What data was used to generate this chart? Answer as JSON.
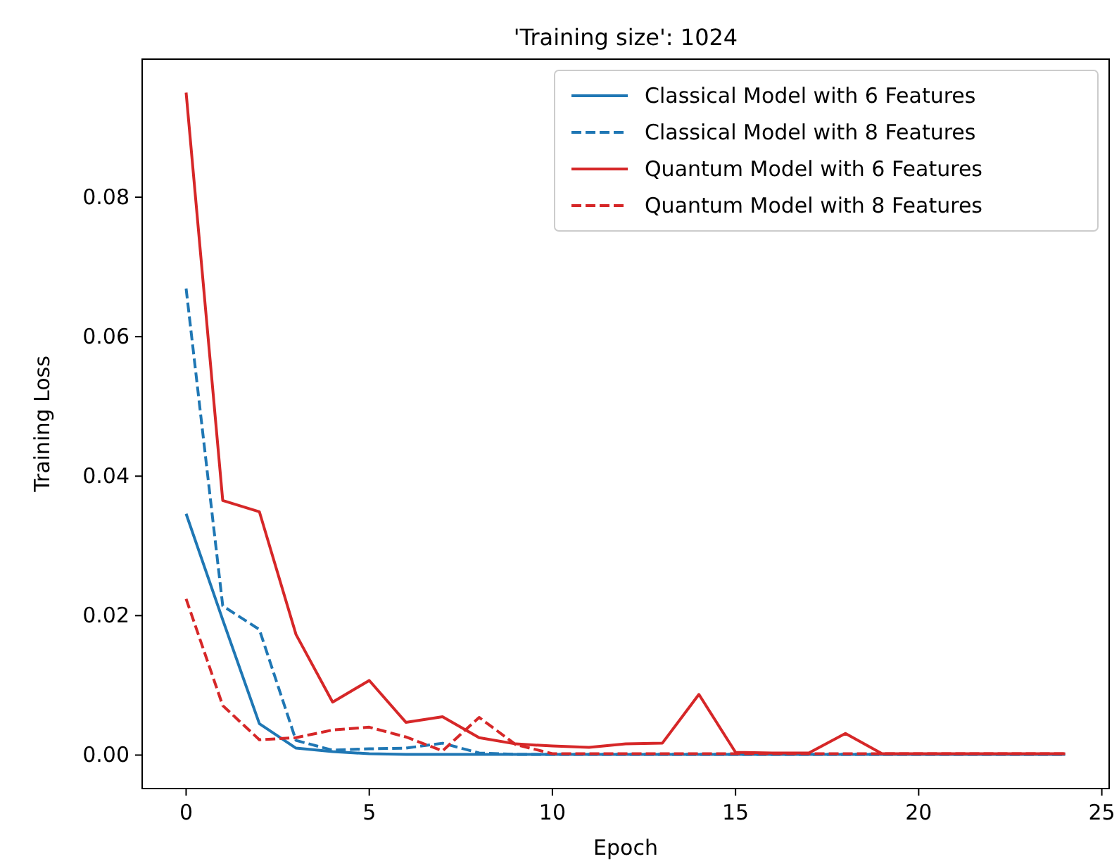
{
  "chart_data": {
    "type": "line",
    "title": "'Training size': 1024",
    "xlabel": "Epoch",
    "ylabel": "Training Loss",
    "x": [
      0,
      1,
      2,
      3,
      4,
      5,
      6,
      7,
      8,
      9,
      10,
      11,
      12,
      13,
      14,
      15,
      16,
      17,
      18,
      19,
      20,
      21,
      22,
      23,
      24
    ],
    "series": [
      {
        "name": "Classical Model with 6 Features",
        "color": "#1f77b4",
        "line_style": "solid",
        "values": [
          0.0346,
          0.0194,
          0.0045,
          0.001,
          0.0005,
          0.0002,
          0.0001,
          0.0001,
          0.0001,
          0.0001,
          0.0001,
          0.0001,
          0.0001,
          0.0001,
          0.0001,
          0.0001,
          0.0001,
          0.0001,
          0.0001,
          0.0001,
          0.0001,
          0.0001,
          0.0001,
          0.0001,
          0.0001
        ]
      },
      {
        "name": "Classical Model with 8 Features",
        "color": "#1f77b4",
        "line_style": "dashed",
        "values": [
          0.0669,
          0.0214,
          0.018,
          0.0021,
          0.0007,
          0.0009,
          0.001,
          0.0017,
          0.0003,
          0.0001,
          0.0001,
          0.0001,
          0.0001,
          0.0001,
          0.0001,
          0.0001,
          0.0001,
          0.0001,
          0.0001,
          0.0001,
          0.0001,
          0.0001,
          0.0001,
          0.0001,
          0.0001
        ]
      },
      {
        "name": "Quantum Model with 6 Features",
        "color": "#d62728",
        "line_style": "solid",
        "values": [
          0.095,
          0.0365,
          0.0349,
          0.0173,
          0.0076,
          0.0107,
          0.0047,
          0.0055,
          0.0025,
          0.0016,
          0.0013,
          0.0011,
          0.0016,
          0.0017,
          0.0087,
          0.0004,
          0.0003,
          0.0003,
          0.0031,
          0.0002,
          0.0002,
          0.0002,
          0.0002,
          0.0002,
          0.0002
        ]
      },
      {
        "name": "Quantum Model with 8 Features",
        "color": "#d62728",
        "line_style": "dashed",
        "values": [
          0.0224,
          0.0071,
          0.0022,
          0.0025,
          0.0036,
          0.004,
          0.0026,
          0.0006,
          0.0054,
          0.0015,
          0.0002,
          0.0002,
          0.0002,
          0.0002,
          0.0002,
          0.0002,
          0.0002,
          0.0002,
          0.0002,
          0.0002,
          0.0002,
          0.0002,
          0.0002,
          0.0002,
          0.0002
        ]
      }
    ],
    "xlim": [
      -1.2,
      25.2
    ],
    "xticks": [
      0,
      5,
      10,
      15,
      20,
      25
    ],
    "ylim": [
      -0.0048,
      0.0998
    ],
    "yticks": [
      {
        "value": 0,
        "label": "0.00"
      },
      {
        "value": 0.02,
        "label": "0.02"
      },
      {
        "value": 0.04,
        "label": "0.04"
      },
      {
        "value": 0.06,
        "label": "0.06"
      },
      {
        "value": 0.08,
        "label": "0.08"
      }
    ],
    "legend": "top right",
    "grid": false
  }
}
